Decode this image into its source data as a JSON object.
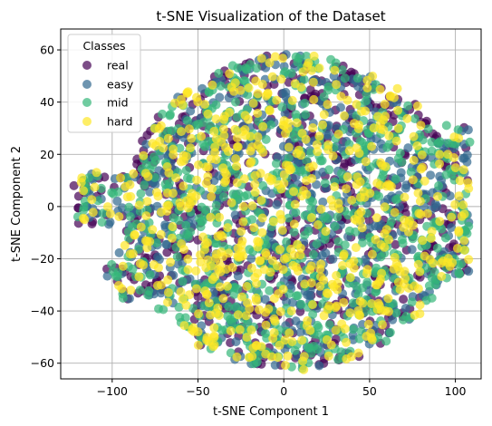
{
  "chart_data": {
    "type": "scatter",
    "title": "t-SNE Visualization of the Dataset",
    "xlabel": "t-SNE Component 1",
    "ylabel": "t-SNE Component 2",
    "xlim": [
      -130,
      115
    ],
    "ylim": [
      -66,
      68
    ],
    "xticks": [
      -100,
      -50,
      0,
      50,
      100
    ],
    "yticks": [
      -60,
      -40,
      -20,
      0,
      20,
      40,
      60
    ],
    "grid": true,
    "legend": {
      "title": "Classes",
      "placement": "top-left",
      "entries": [
        "real",
        "easy",
        "mid",
        "hard"
      ]
    },
    "series": [
      {
        "name": "real",
        "color": "#440154"
      },
      {
        "name": "easy",
        "color": "#31688e"
      },
      {
        "name": "mid",
        "color": "#35b779"
      },
      {
        "name": "hard",
        "color": "#fde725"
      }
    ]
  }
}
